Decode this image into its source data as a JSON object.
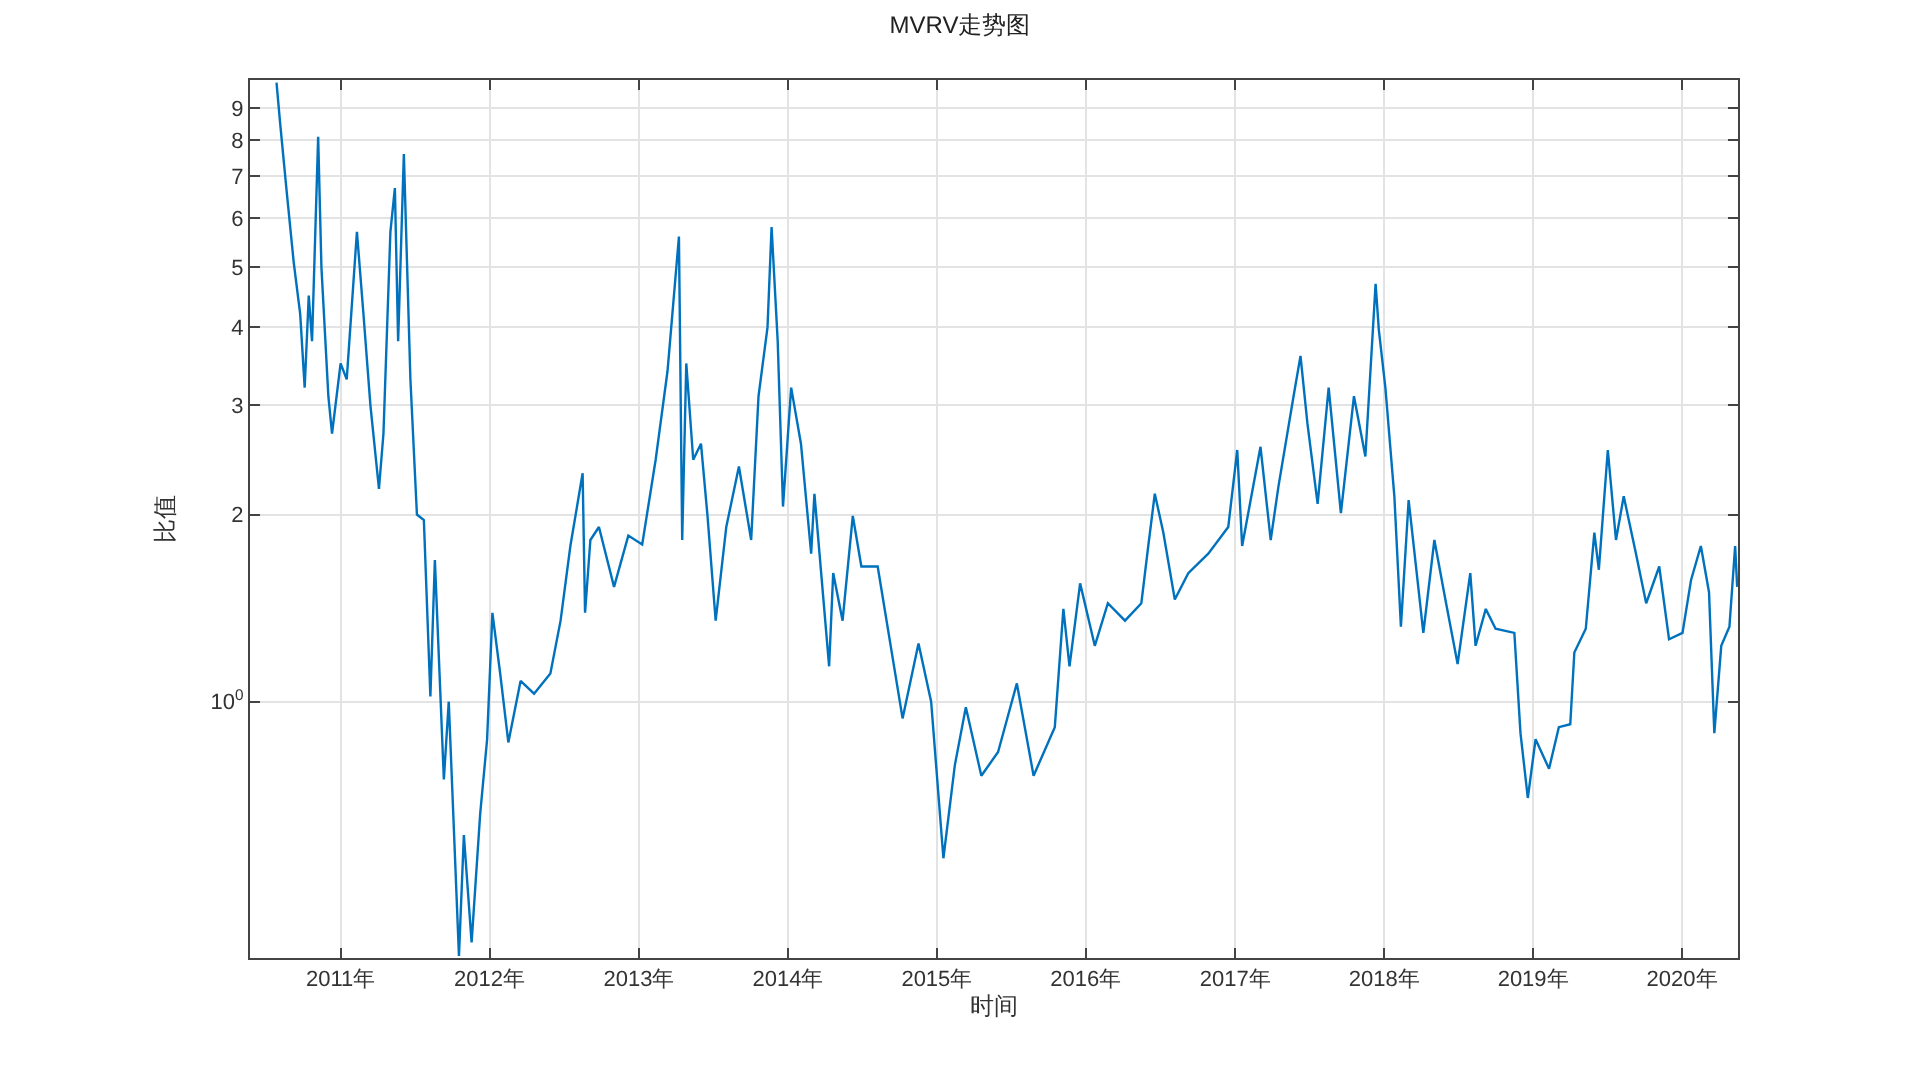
{
  "chart_data": {
    "type": "line",
    "title": "MVRV走势图",
    "xlabel": "时间",
    "ylabel": "比值",
    "log": "y",
    "grid": true,
    "line_style": "solid",
    "marker": "none",
    "xlim": [
      "2010-05-24",
      "2020-05-17"
    ],
    "ylim": [
      0.387,
      10
    ],
    "xticks": [
      {
        "value": "2011-01-01",
        "label": "2011年"
      },
      {
        "value": "2012-01-01",
        "label": "2012年"
      },
      {
        "value": "2013-01-01",
        "label": "2013年"
      },
      {
        "value": "2014-01-01",
        "label": "2014年"
      },
      {
        "value": "2015-01-01",
        "label": "2015年"
      },
      {
        "value": "2016-01-01",
        "label": "2016年"
      },
      {
        "value": "2017-01-01",
        "label": "2017年"
      },
      {
        "value": "2018-01-01",
        "label": "2018年"
      },
      {
        "value": "2019-01-01",
        "label": "2019年"
      },
      {
        "value": "2020-01-01",
        "label": "2020年"
      }
    ],
    "yticks": [
      {
        "value": 1,
        "label": "10$^{0}$"
      },
      2,
      3,
      4,
      5,
      6,
      7,
      8,
      9
    ],
    "x": [
      "2010-07-28",
      "2010-08-06",
      "2010-08-22",
      "2010-09-08",
      "2010-09-24",
      "2010-10-05",
      "2010-10-15",
      "2010-10-23",
      "2010-11-07",
      "2010-11-15",
      "2010-12-02",
      "2010-12-11",
      "2011-01-01",
      "2011-01-16",
      "2011-02-10",
      "2011-02-26",
      "2011-03-15",
      "2011-04-05",
      "2011-04-16",
      "2011-05-03",
      "2011-05-14",
      "2011-05-22",
      "2011-06-05",
      "2011-06-21",
      "2011-07-07",
      "2011-07-24",
      "2011-08-09",
      "2011-08-20",
      "2011-09-11",
      "2011-09-23",
      "2011-10-18",
      "2011-10-30",
      "2011-11-18",
      "2011-12-09",
      "2011-12-26",
      "2012-01-08",
      "2012-01-27",
      "2012-02-16",
      "2012-03-17",
      "2012-04-19",
      "2012-05-29",
      "2012-06-23",
      "2012-07-17",
      "2012-08-16",
      "2012-08-22",
      "2012-09-04",
      "2012-09-25",
      "2012-11-01",
      "2012-12-06",
      "2013-01-09",
      "2013-02-11",
      "2013-03-12",
      "2013-04-09",
      "2013-04-17",
      "2013-04-27",
      "2013-05-14",
      "2013-06-02",
      "2013-06-18",
      "2013-07-08",
      "2013-08-03",
      "2013-09-03",
      "2013-10-03",
      "2013-10-21",
      "2013-11-12",
      "2013-11-22",
      "2013-12-07",
      "2013-12-20",
      "2014-01-09",
      "2014-02-02",
      "2014-02-27",
      "2014-03-07",
      "2014-04-12",
      "2014-04-22",
      "2014-05-15",
      "2014-06-09",
      "2014-06-30",
      "2014-08-09",
      "2014-10-09",
      "2014-11-17",
      "2014-12-18",
      "2015-01-17",
      "2015-02-14",
      "2015-03-13",
      "2015-04-20",
      "2015-05-31",
      "2015-07-16",
      "2015-08-26",
      "2015-10-17",
      "2015-11-07",
      "2015-11-22",
      "2015-12-18",
      "2016-01-23",
      "2016-02-24",
      "2016-04-06",
      "2016-05-16",
      "2016-06-02",
      "2016-06-18",
      "2016-07-09",
      "2016-08-06",
      "2016-09-08",
      "2016-10-27",
      "2016-12-15",
      "2017-01-06",
      "2017-01-18",
      "2017-03-04",
      "2017-03-29",
      "2017-04-17",
      "2017-05-24",
      "2017-06-10",
      "2017-06-27",
      "2017-07-22",
      "2017-08-18",
      "2017-09-17",
      "2017-10-19",
      "2017-11-16",
      "2017-12-11",
      "2017-12-19",
      "2018-01-04",
      "2018-01-26",
      "2018-02-11",
      "2018-03-02",
      "2018-04-07",
      "2018-05-04",
      "2018-05-31",
      "2018-06-30",
      "2018-07-31",
      "2018-08-13",
      "2018-09-07",
      "2018-10-01",
      "2018-11-16",
      "2018-12-01",
      "2018-12-19",
      "2019-01-07",
      "2019-02-09",
      "2019-03-05",
      "2019-04-02",
      "2019-04-12",
      "2019-05-10",
      "2019-05-31",
      "2019-06-11",
      "2019-07-03",
      "2019-07-23",
      "2019-08-11",
      "2019-09-10",
      "2019-10-05",
      "2019-11-06",
      "2019-11-30",
      "2020-01-02",
      "2020-01-23",
      "2020-02-16",
      "2020-03-07",
      "2020-03-20",
      "2020-04-06",
      "2020-04-26",
      "2020-05-10",
      "2020-05-15"
    ],
    "series": [
      {
        "color": "#0072bd",
        "values": [
          9.9,
          8.5,
          6.6,
          5.1,
          4.2,
          3.2,
          4.5,
          3.8,
          8.1,
          5.0,
          3.1,
          2.7,
          3.5,
          3.3,
          5.7,
          4.2,
          3.0,
          2.2,
          2.7,
          5.7,
          6.7,
          3.8,
          7.6,
          3.3,
          2.0,
          1.96,
          1.02,
          1.69,
          0.75,
          1.0,
          0.39,
          0.61,
          0.41,
          0.66,
          0.87,
          1.39,
          1.11,
          0.86,
          1.08,
          1.03,
          1.11,
          1.35,
          1.78,
          2.33,
          1.39,
          1.82,
          1.91,
          1.53,
          1.85,
          1.79,
          2.45,
          3.4,
          5.6,
          1.82,
          3.5,
          2.45,
          2.6,
          1.99,
          1.35,
          1.91,
          2.39,
          1.82,
          3.1,
          4.0,
          5.8,
          3.8,
          2.06,
          3.2,
          2.6,
          1.73,
          2.16,
          1.14,
          1.61,
          1.35,
          1.99,
          1.65,
          1.65,
          0.94,
          1.24,
          1.0,
          0.56,
          0.79,
          0.98,
          0.76,
          0.83,
          1.07,
          0.76,
          0.91,
          1.41,
          1.14,
          1.55,
          1.23,
          1.44,
          1.35,
          1.44,
          1.78,
          2.16,
          1.87,
          1.46,
          1.61,
          1.73,
          1.91,
          2.54,
          1.78,
          2.57,
          1.82,
          2.22,
          3.1,
          3.6,
          2.8,
          2.08,
          3.2,
          2.01,
          3.1,
          2.48,
          4.7,
          3.96,
          3.2,
          2.14,
          1.32,
          2.11,
          1.29,
          1.82,
          1.46,
          1.15,
          1.61,
          1.23,
          1.41,
          1.31,
          1.29,
          0.89,
          0.7,
          0.87,
          0.78,
          0.91,
          0.92,
          1.2,
          1.31,
          1.87,
          1.63,
          2.54,
          1.82,
          2.14,
          1.73,
          1.44,
          1.65,
          1.26,
          1.29,
          1.57,
          1.78,
          1.5,
          0.89,
          1.23,
          1.32,
          1.78,
          1.53
        ]
      }
    ]
  }
}
